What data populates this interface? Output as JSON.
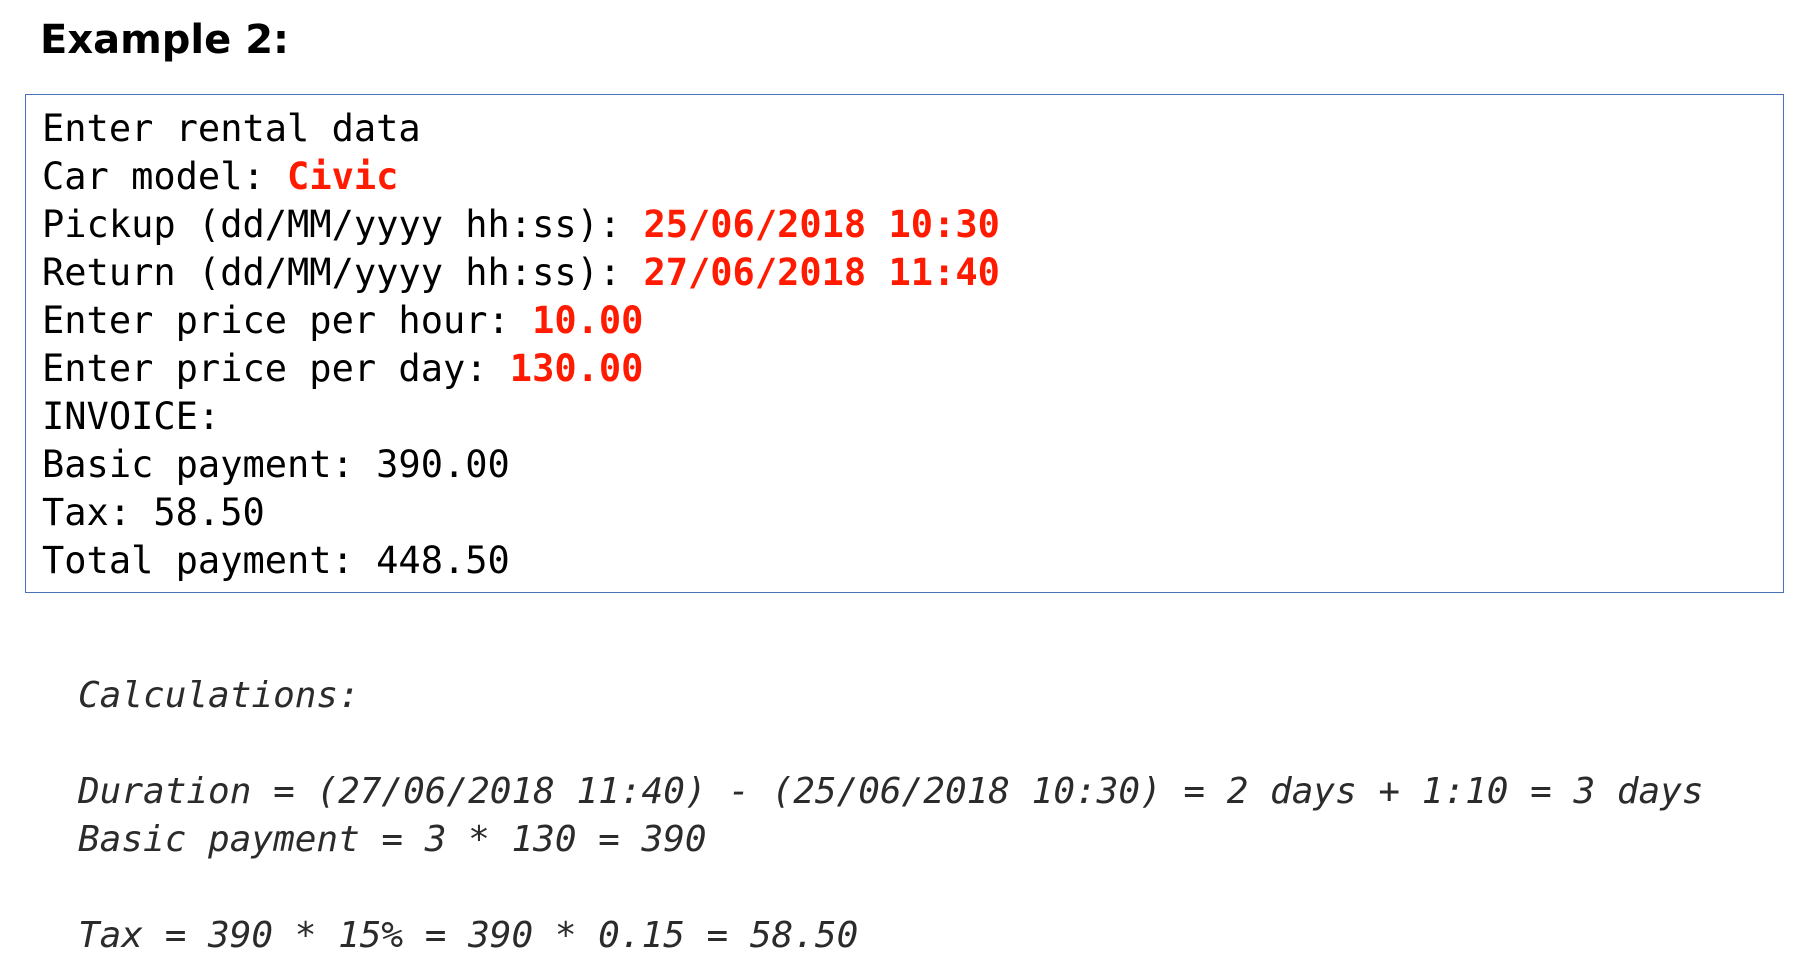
{
  "heading": "Example 2:",
  "console": {
    "border_color": "#4a72b8",
    "input_color": "#ff1a00",
    "lines": {
      "enter_rental": "Enter rental data",
      "car_model_label": "Car model: ",
      "car_model_value": "Civic",
      "pickup_label": "Pickup (dd/MM/yyyy hh:ss): ",
      "pickup_value": "25/06/2018 10:30",
      "return_label": "Return (dd/MM/yyyy hh:ss): ",
      "return_value": "27/06/2018 11:40",
      "price_hour_label": "Enter price per hour: ",
      "price_hour_value": "10.00",
      "price_day_label": "Enter price per day: ",
      "price_day_value": "130.00",
      "invoice": "INVOICE:",
      "basic_payment": "Basic payment: 390.00",
      "tax": "Tax: 58.50",
      "total_payment": "Total payment: 448.50"
    }
  },
  "calculations": {
    "title": "Calculations:",
    "duration": "Duration = (27/06/2018 11:40) - (25/06/2018 10:30) = 2 days + 1:10 = 3 days",
    "basic_payment": "Basic payment = 3 * 130 = 390",
    "tax": "Tax = 390 * 15% = 390 * 0.15 = 58.50"
  }
}
